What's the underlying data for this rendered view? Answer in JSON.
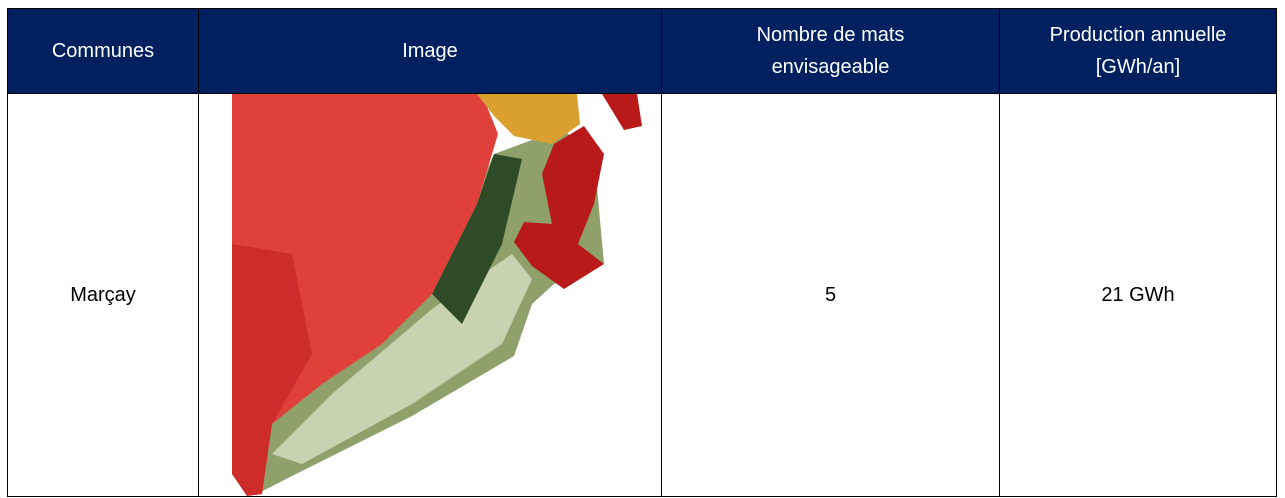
{
  "table": {
    "header": [
      [
        "Communes"
      ],
      [
        "Image"
      ],
      [
        "Nombre de mats",
        "envisageable"
      ],
      [
        "Production annuelle",
        "[GWh/an]"
      ]
    ],
    "rows": [
      [
        "Marçay",
        "5",
        "21 GWh"
      ]
    ]
  }
}
